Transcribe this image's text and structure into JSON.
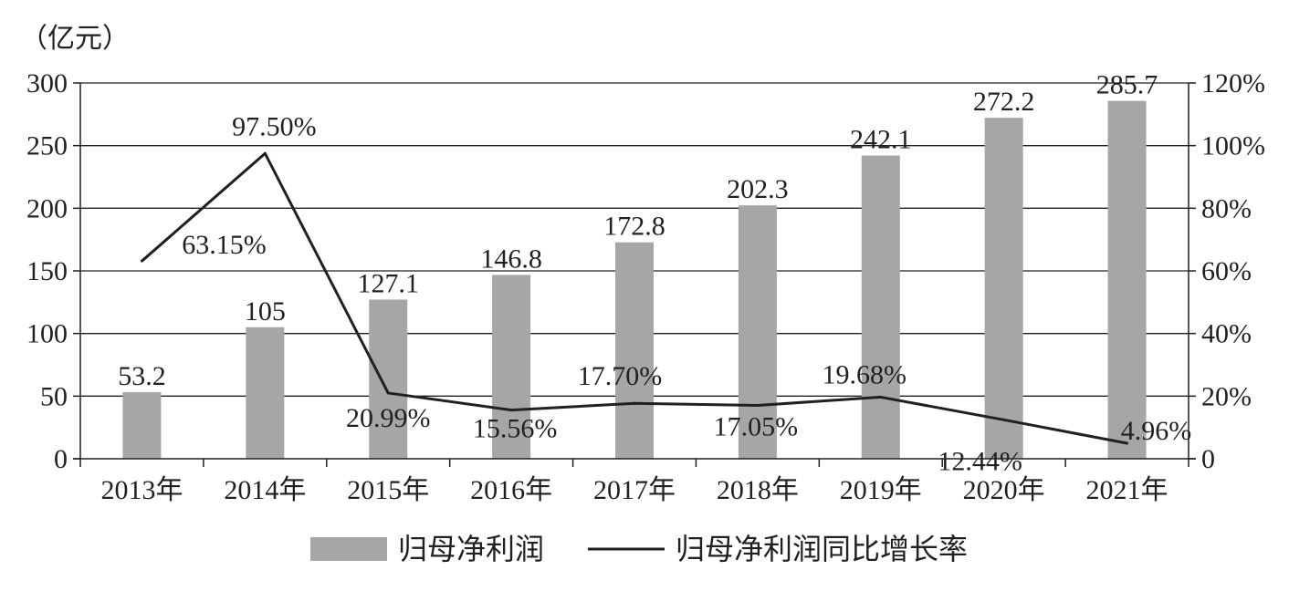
{
  "chart_data": {
    "type": "bar",
    "unit_label": "（亿元）",
    "categories": [
      "2013年",
      "2014年",
      "2015年",
      "2016年",
      "2017年",
      "2018年",
      "2019年",
      "2020年",
      "2021年"
    ],
    "series": [
      {
        "name": "归母净利润",
        "type": "bar",
        "axis": "left",
        "values": [
          53.2,
          105,
          127.1,
          146.8,
          172.8,
          202.3,
          242.1,
          272.2,
          285.7
        ],
        "labels": [
          "53.2",
          "105",
          "127.1",
          "146.8",
          "172.8",
          "202.3",
          "242.1",
          "272.2",
          "285.7"
        ],
        "color": "#a6a6a6"
      },
      {
        "name": "归母净利润同比增长率",
        "type": "line",
        "axis": "right",
        "values": [
          63.15,
          97.5,
          20.99,
          15.56,
          17.7,
          17.05,
          19.68,
          12.44,
          4.96
        ],
        "labels": [
          "63.15%",
          "97.50%",
          "20.99%",
          "15.56%",
          "17.70%",
          "17.05%",
          "19.68%",
          "12.44%",
          "4.96%"
        ],
        "color": "#231f20"
      }
    ],
    "y_left": {
      "ylim": [
        0,
        300
      ],
      "ticks": [
        "0",
        "50",
        "100",
        "150",
        "200",
        "250",
        "300"
      ]
    },
    "y_right": {
      "ylim": [
        0,
        120
      ],
      "ticks": [
        "0",
        "20%",
        "40%",
        "60%",
        "80%",
        "100%",
        "120%"
      ]
    },
    "grid": true,
    "legend": "bottom-center"
  }
}
